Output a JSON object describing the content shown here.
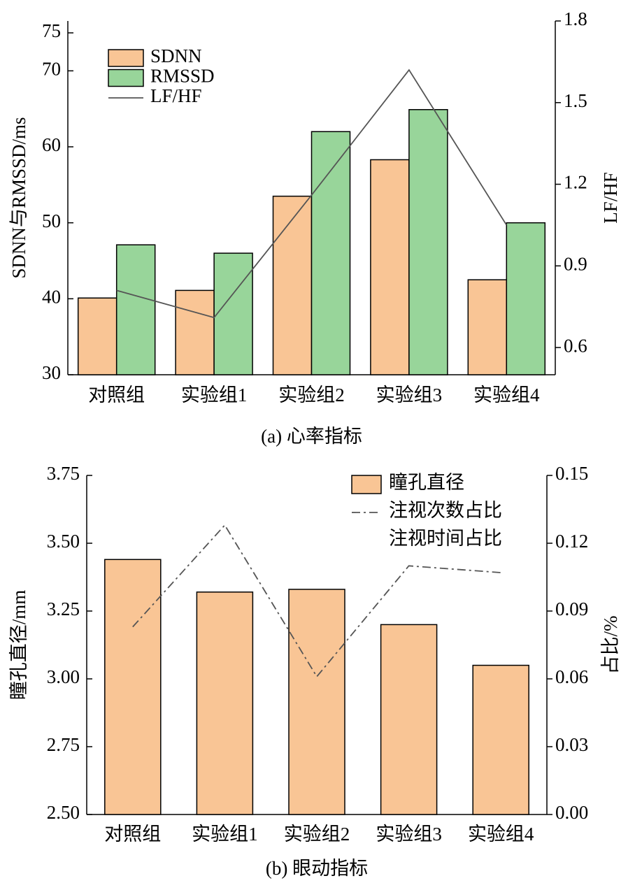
{
  "chart_data": [
    {
      "type": "bar",
      "title": "(a) 心率指标",
      "categories": [
        "对照组",
        "实验组1",
        "实验组2",
        "实验组3",
        "实验组4"
      ],
      "series": [
        {
          "name": "SDNN",
          "color": "#f9c595",
          "values": [
            40.1,
            41.1,
            53.5,
            58.3,
            42.5
          ]
        },
        {
          "name": "RMSSD",
          "color": "#98d59a",
          "values": [
            47.1,
            46,
            62,
            64.9,
            50
          ]
        },
        {
          "name": "LF/HF",
          "type": "line",
          "axis": "y2",
          "color": "#555555",
          "values": [
            0.81,
            0.71,
            1.16,
            1.62,
            1.05
          ]
        }
      ],
      "ylabel": "SDNN与RMSSD/ms",
      "y2label": "LF/HF",
      "ylim": [
        30,
        75
      ],
      "yticks": [
        30,
        40,
        50,
        60,
        70,
        75
      ],
      "y2lim": [
        0.5,
        1.8
      ],
      "y2ticks": [
        0.6,
        0.9,
        1.2,
        1.5,
        1.8
      ]
    },
    {
      "type": "bar",
      "title": "(b) 眼动指标",
      "categories": [
        "对照组",
        "实验组1",
        "实验组2",
        "实验组3",
        "实验组4"
      ],
      "series": [
        {
          "name": "瞳孔直径",
          "color": "#f9c595",
          "values": [
            3.44,
            3.32,
            3.33,
            3.2,
            3.05
          ]
        },
        {
          "name": "注视次数占比",
          "type": "line",
          "axis": "y2",
          "color": "#555555",
          "dash": "dashdot",
          "values": [
            0.083,
            0.128,
            0.061,
            0.11,
            0.107
          ]
        },
        {
          "name": "注视时间占比",
          "type": "line",
          "axis": "y2",
          "color": "#ffffff",
          "values": [
            null,
            null,
            null,
            null,
            null
          ]
        }
      ],
      "ylabel": "瞳孔直径/mm",
      "y2label": "占比/%",
      "ylim": [
        2.5,
        3.75
      ],
      "yticks": [
        {
          "value": 2.5,
          "label": "2.50"
        },
        {
          "value": 2.75,
          "label": "2.75"
        },
        {
          "value": 3,
          "label": "3.00"
        },
        {
          "value": 3.25,
          "label": "3.25"
        },
        {
          "value": 3.5,
          "label": "3.50"
        },
        {
          "value": 3.75,
          "label": "3.75"
        }
      ],
      "y2lim": [
        0,
        0.15
      ],
      "y2ticks": [
        {
          "value": 0,
          "label": "0.00"
        },
        {
          "value": 0.03,
          "label": "0.03"
        },
        {
          "value": 0.06,
          "label": "0.06"
        },
        {
          "value": 0.09,
          "label": "0.09"
        },
        {
          "value": 0.12,
          "label": "0.12"
        },
        {
          "value": 0.15,
          "label": "0.15"
        }
      ]
    }
  ]
}
